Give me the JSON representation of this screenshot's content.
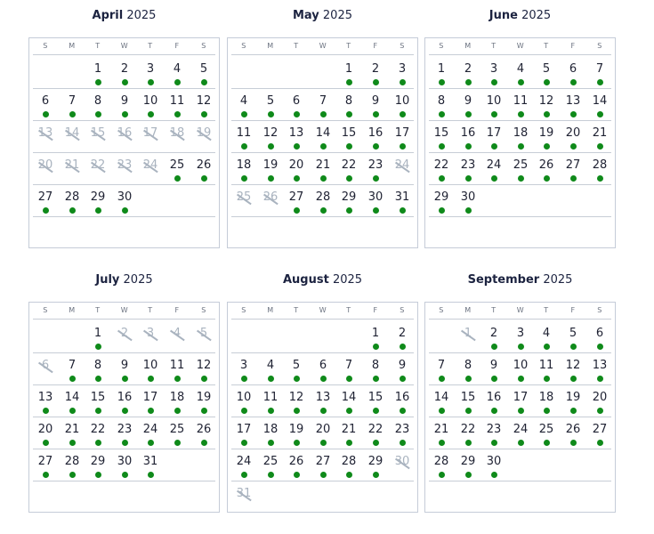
{
  "weekday_headers": [
    "S",
    "M",
    "T",
    "W",
    "T",
    "F",
    "S"
  ],
  "colors": {
    "available_dot": "#0f8a1a",
    "crossed": "#a9b3bf",
    "border": "#c5ccd8"
  },
  "legend_semantics": {
    "dot": "available",
    "struck": "unavailable"
  },
  "months": [
    {
      "name": "April",
      "year": "2025",
      "start_dow": 2,
      "days": 30,
      "unavailable": [
        13,
        14,
        15,
        16,
        17,
        18,
        19,
        20,
        21,
        22,
        23,
        24
      ]
    },
    {
      "name": "May",
      "year": "2025",
      "start_dow": 4,
      "days": 31,
      "unavailable": [
        24,
        25,
        26
      ]
    },
    {
      "name": "June",
      "year": "2025",
      "start_dow": 0,
      "days": 30,
      "unavailable": []
    },
    {
      "name": "July",
      "year": "2025",
      "start_dow": 2,
      "days": 31,
      "unavailable": [
        2,
        3,
        4,
        5,
        6
      ]
    },
    {
      "name": "August",
      "year": "2025",
      "start_dow": 5,
      "days": 31,
      "unavailable": [
        30,
        31
      ]
    },
    {
      "name": "September",
      "year": "2025",
      "start_dow": 1,
      "days": 30,
      "unavailable": [
        1
      ]
    }
  ]
}
